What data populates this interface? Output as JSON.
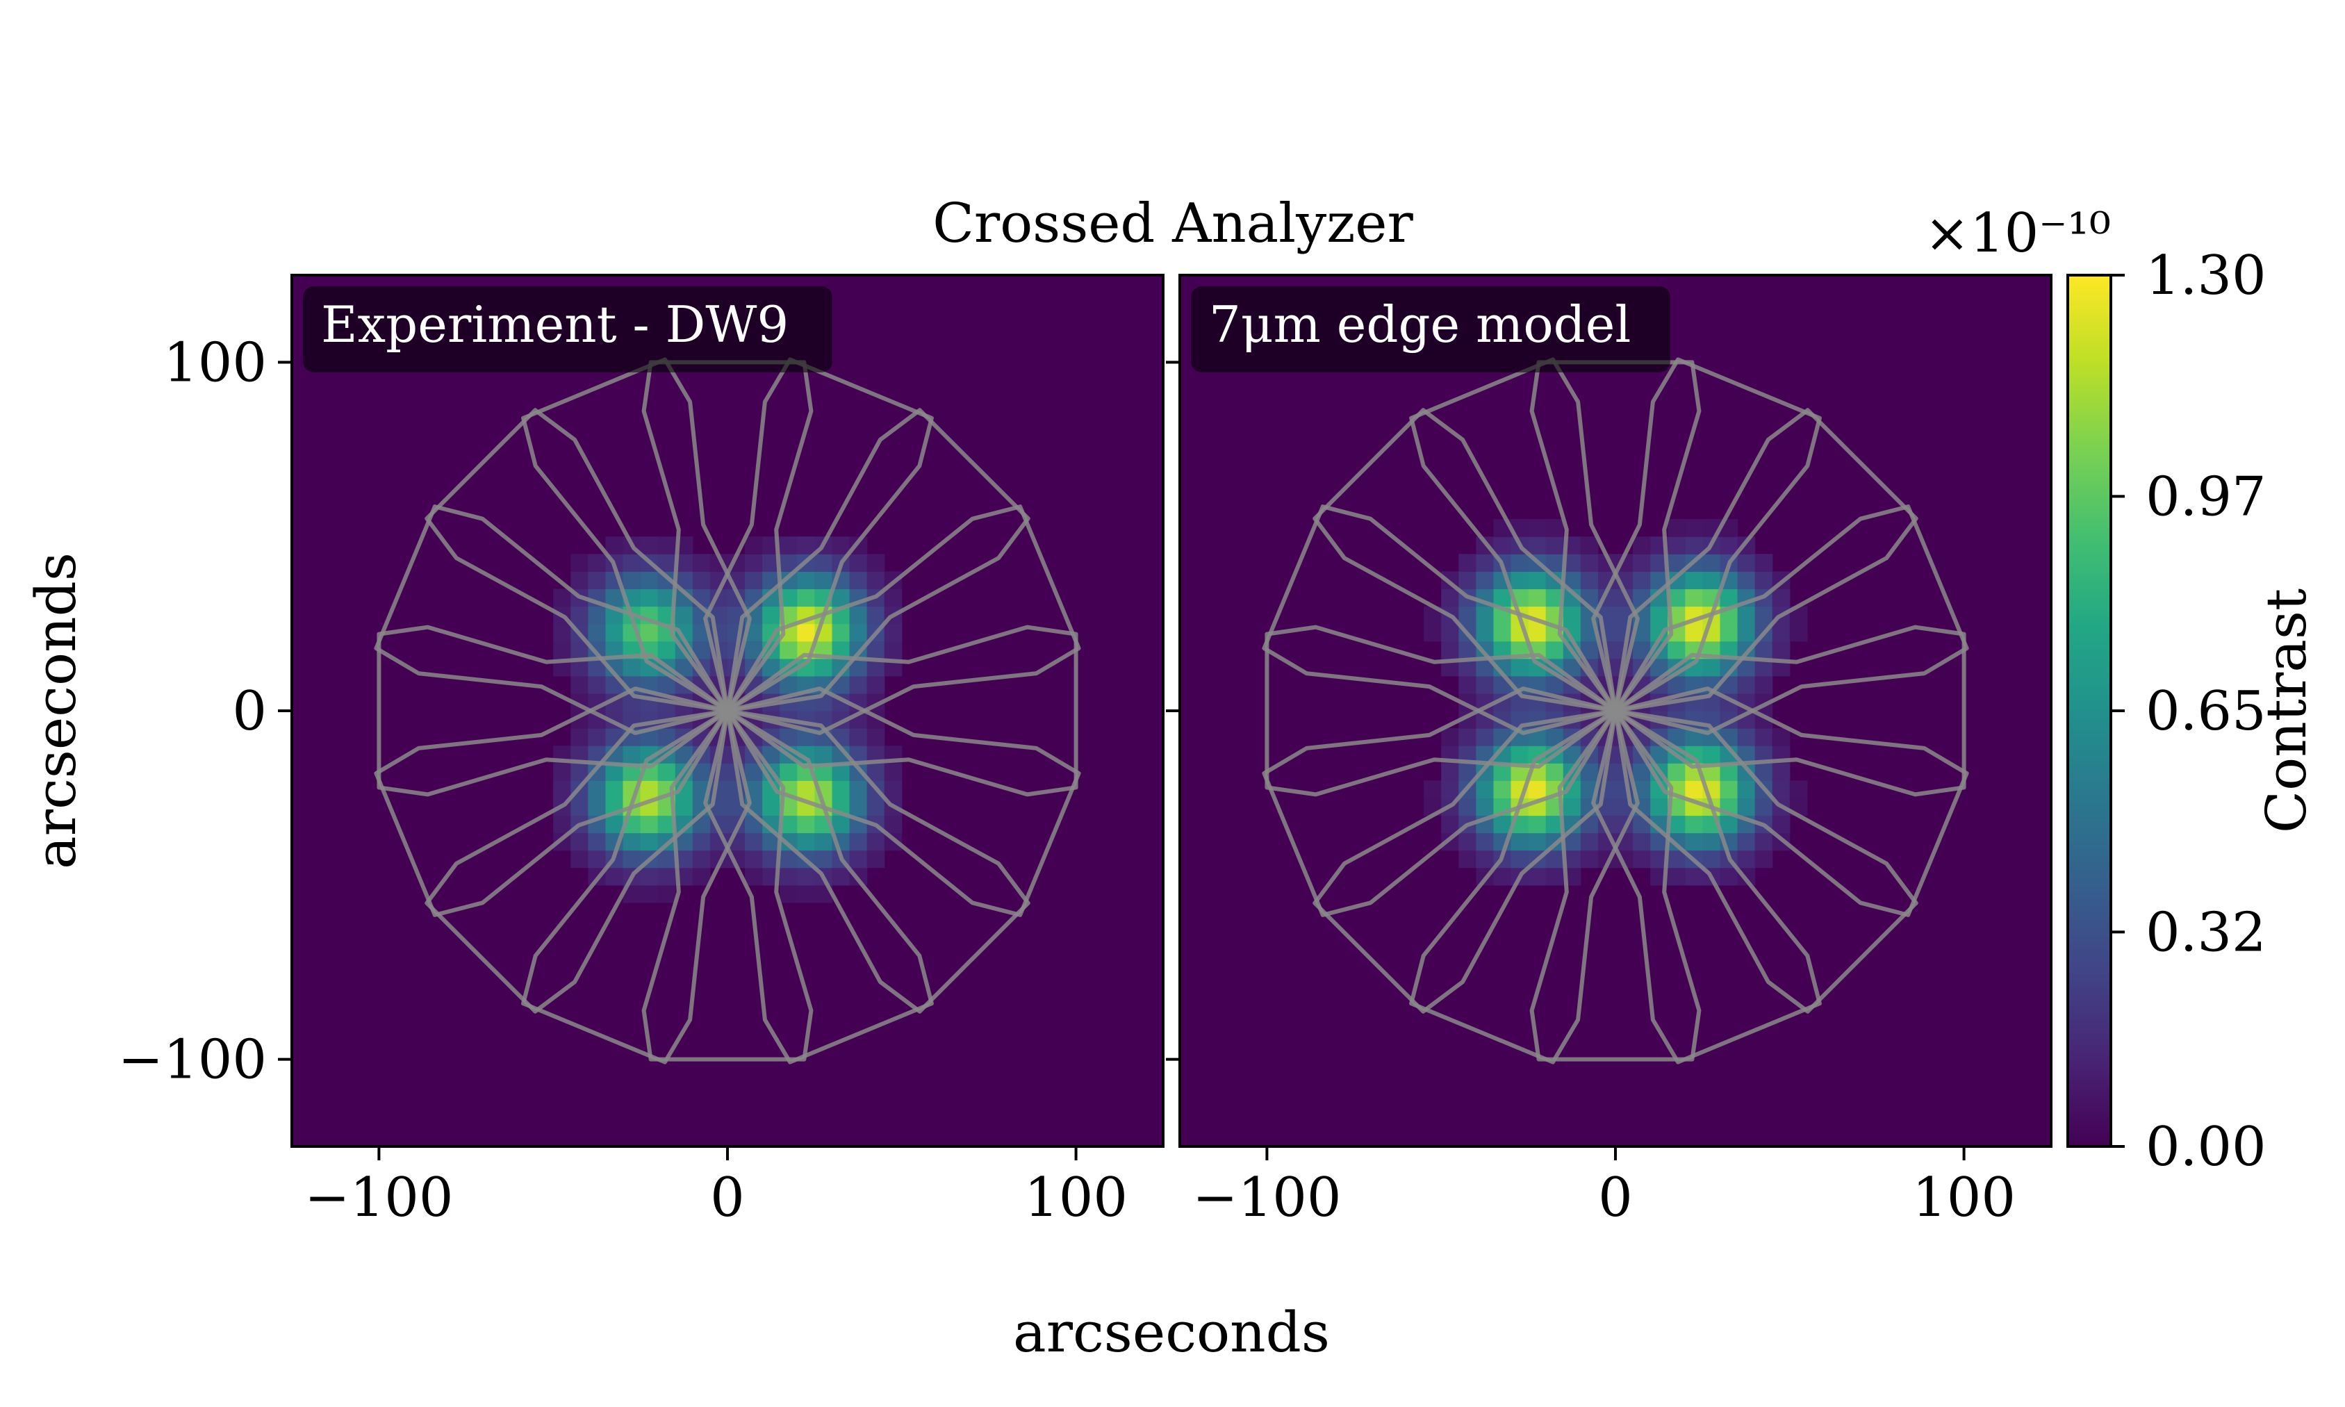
{
  "chart_data": {
    "type": "heatmap",
    "title": "Crossed Analyzer",
    "xlabel": "arcseconds",
    "ylabel": "arcseconds",
    "xlim": [
      -125,
      125
    ],
    "ylim": [
      -125,
      125
    ],
    "xticks": [
      {
        "value": -100,
        "label": "−100"
      },
      {
        "value": 0,
        "label": "0"
      },
      {
        "value": 100,
        "label": "100"
      }
    ],
    "yticks": [
      {
        "value": 100,
        "label": "100"
      },
      {
        "value": 0,
        "label": "0"
      },
      {
        "value": -100,
        "label": "−100"
      }
    ],
    "colormap": "viridis",
    "colorbar": {
      "label": "Contrast",
      "multiplier": "×10⁻¹⁰",
      "range": [
        0.0,
        1.3
      ],
      "ticks": [
        "0.00",
        "0.32",
        "0.65",
        "0.97",
        "1.30"
      ]
    },
    "panels": [
      {
        "label": "Experiment - DW9",
        "background": 0.02,
        "peaks": [
          {
            "x": -23,
            "y": 23,
            "value": 0.95
          },
          {
            "x": 23,
            "y": 23,
            "value": 1.25
          },
          {
            "x": -23,
            "y": -25,
            "value": 1.15
          },
          {
            "x": 23,
            "y": -25,
            "value": 1.15
          }
        ]
      },
      {
        "label": "7μm edge model",
        "background": 0.02,
        "peaks": [
          {
            "x": -24,
            "y": 25,
            "value": 1.25
          },
          {
            "x": 24,
            "y": 25,
            "value": 1.25
          },
          {
            "x": -24,
            "y": -23,
            "value": 1.25
          },
          {
            "x": 24,
            "y": -23,
            "value": 1.25
          }
        ]
      }
    ],
    "overlay": {
      "description": "starshade petal outlines",
      "petals": 16,
      "color": "#8a8a8a"
    }
  }
}
